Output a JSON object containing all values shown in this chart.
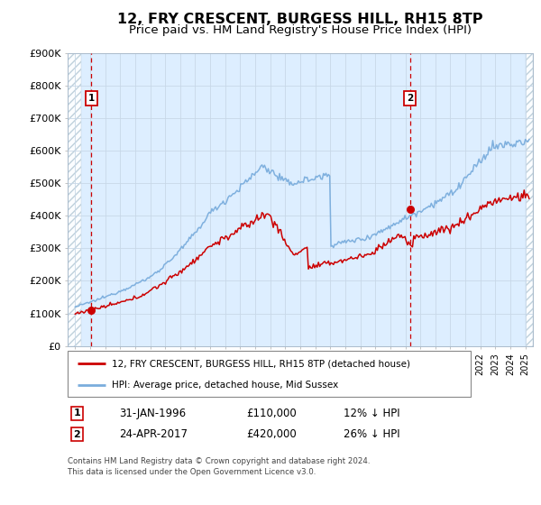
{
  "title": "12, FRY CRESCENT, BURGESS HILL, RH15 8TP",
  "subtitle": "Price paid vs. HM Land Registry's House Price Index (HPI)",
  "title_fontsize": 11.5,
  "subtitle_fontsize": 9.5,
  "ylim": [
    0,
    900000
  ],
  "xlim_start": 1994.5,
  "xlim_end": 2025.5,
  "yticks": [
    0,
    100000,
    200000,
    300000,
    400000,
    500000,
    600000,
    700000,
    800000,
    900000
  ],
  "ytick_labels": [
    "£0",
    "£100K",
    "£200K",
    "£300K",
    "£400K",
    "£500K",
    "£600K",
    "£700K",
    "£800K",
    "£900K"
  ],
  "sale1_x": 1996.08,
  "sale1_y": 110000,
  "sale2_x": 2017.31,
  "sale2_y": 420000,
  "hpi_color": "#7aaddd",
  "price_color": "#cc0000",
  "grid_color": "#c8d8e8",
  "bg_color": "#ddeeff",
  "hatch_color": "#b8ccd8",
  "legend_label1": "12, FRY CRESCENT, BURGESS HILL, RH15 8TP (detached house)",
  "legend_label2": "HPI: Average price, detached house, Mid Sussex",
  "annotation1_label": "1",
  "annotation2_label": "2",
  "table_row1": [
    "1",
    "31-JAN-1996",
    "£110,000",
    "12% ↓ HPI"
  ],
  "table_row2": [
    "2",
    "24-APR-2017",
    "£420,000",
    "26% ↓ HPI"
  ],
  "footer": "Contains HM Land Registry data © Crown copyright and database right 2024.\nThis data is licensed under the Open Government Licence v3.0."
}
